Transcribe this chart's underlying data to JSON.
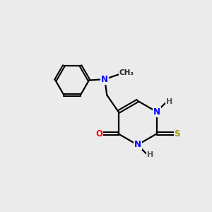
{
  "background_color": "#ebebeb",
  "bond_color": "#000000",
  "atom_colors": {
    "N": "#0000ff",
    "O": "#ff0000",
    "S": "#999900",
    "H": "#555555",
    "C": "#000000"
  },
  "lw": 1.6,
  "fontsize": 8.5
}
